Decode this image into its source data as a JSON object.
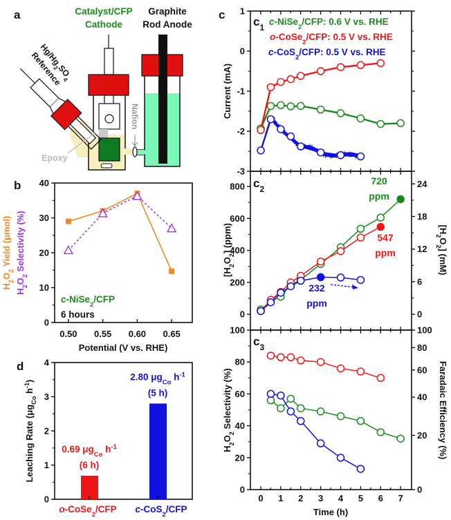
{
  "colors": {
    "green": "#1a8a1a",
    "red": "#f01515",
    "blue": "#1010e0",
    "orange": "#f5891f",
    "purple": "#a030f0",
    "black": "#111111"
  },
  "diagram": {
    "panel_label": "a",
    "cathode_label_1": "Catalyst/CFP",
    "cathode_label_2": "Cathode",
    "anode_label_1": "Graphite",
    "anode_label_2": "Rod Anode",
    "reference_label_1": "Hg/Hg_{2}SO_{4}",
    "reference_label_2": "Reference",
    "nafion_label": "Nafion",
    "epoxy_label": "Epoxy"
  },
  "chart_data": [
    {
      "id": "b",
      "panel_label": "b",
      "type": "line",
      "xlabel": "Potential (V vs. RHE)",
      "ylabel_1": "H_{2}O_{2} Yield (μmol)",
      "ylabel_2": "H_{2}O_{2} Selectivity (%)",
      "xlim": [
        0.48,
        0.68
      ],
      "ylim": [
        0,
        40
      ],
      "xticks": [
        "0.50",
        "0.55",
        "0.60",
        "0.65"
      ],
      "yticks": [
        0,
        10,
        20,
        30,
        40
      ],
      "x": [
        0.5,
        0.55,
        0.6,
        0.65
      ],
      "series": [
        {
          "name": "H2O2 Yield (μmol)",
          "color": "orange",
          "marker": "square",
          "dashed": false,
          "values": [
            29.0,
            32.0,
            37.0,
            14.7
          ]
        },
        {
          "name": "H2O2 Selectivity (%)",
          "color": "purple",
          "marker": "triangle-open",
          "dashed": true,
          "values": [
            20.7,
            31.3,
            36.3,
            27.0
          ]
        }
      ],
      "annotations": [
        {
          "text": "~{c}-NiSe_{2}/CFP",
          "color": "green"
        },
        {
          "text": "6 hours",
          "color": "black"
        }
      ]
    },
    {
      "id": "c1",
      "panel_label": "c",
      "sub_label": "c_{1}",
      "type": "line",
      "ylabel": "Current (mA)",
      "xlim": [
        -0.52,
        7.55
      ],
      "ylim": [
        -3,
        1
      ],
      "yticks": [
        -3,
        -2,
        -1,
        0,
        1
      ],
      "series": [
        {
          "name": "~{c}-NiSe_{2}/CFP: 0.6 V vs. RHE",
          "color": "green",
          "x": [
            0,
            0.5,
            1,
            1.5,
            2,
            3,
            4,
            5,
            6,
            7
          ],
          "y": [
            -1.93,
            -1.37,
            -1.35,
            -1.38,
            -1.37,
            -1.46,
            -1.55,
            -1.68,
            -1.82,
            -1.8
          ]
        },
        {
          "name": "~{o}-CoSe_{2}/CFP: 0.5 V vs. RHE",
          "color": "red",
          "x": [
            0,
            0.5,
            1,
            1.5,
            2,
            3,
            4,
            5,
            6
          ],
          "y": [
            -1.97,
            -0.9,
            -0.77,
            -0.7,
            -0.62,
            -0.5,
            -0.4,
            -0.35,
            -0.3
          ]
        },
        {
          "name": "~{c}-CoS_{2}/CFP: 0.5 V vs. RHE",
          "color": "blue",
          "x": [
            0,
            0.5,
            1,
            1.5,
            2,
            3,
            4,
            5
          ],
          "y": [
            -2.48,
            -1.7,
            -1.95,
            -2.13,
            -2.38,
            -2.53,
            -2.6,
            -2.63
          ]
        }
      ]
    },
    {
      "id": "c2",
      "sub_label": "c_{2}",
      "type": "line",
      "ylabel": "[H_{2}O_{2}] (ppm)",
      "ylabel_right": "[H_{2}O_{2}] (mM)",
      "xlim": [
        -0.52,
        7.55
      ],
      "ylim": [
        -99,
        895
      ],
      "yticks": [
        0,
        200,
        400,
        600,
        800
      ],
      "yticks_right": [
        0,
        6,
        12,
        18,
        24
      ],
      "series": [
        {
          "color": "green",
          "x": [
            0,
            0.5,
            1,
            1.5,
            2,
            3,
            4,
            5,
            6,
            7
          ],
          "y": [
            30,
            80,
            110,
            185,
            215,
            315,
            420,
            535,
            605,
            720
          ],
          "filled": [
            9
          ]
        },
        {
          "color": "red",
          "x": [
            0,
            0.5,
            1,
            1.5,
            2,
            3,
            4,
            5,
            6
          ],
          "y": [
            20,
            90,
            140,
            200,
            240,
            330,
            395,
            480,
            547
          ],
          "filled": [
            8
          ]
        },
        {
          "color": "blue",
          "x": [
            0,
            0.5,
            1,
            1.5,
            2,
            3,
            4,
            5
          ],
          "y": [
            20,
            75,
            135,
            175,
            210,
            232,
            230,
            215
          ],
          "filled": [
            5
          ]
        }
      ],
      "annotations": [
        {
          "text": "720",
          "color": "green"
        },
        {
          "text": "ppm",
          "color": "green"
        },
        {
          "text": "547",
          "color": "red"
        },
        {
          "text": "ppm",
          "color": "red"
        },
        {
          "text": "232",
          "color": "blue"
        },
        {
          "text": "ppm",
          "color": "blue"
        }
      ]
    },
    {
      "id": "c3",
      "sub_label": "c_{3}",
      "type": "line",
      "xlabel": "Time (h)",
      "ylabel": "H_{2}O_{2} Selectivity (%)",
      "ylabel_right": "Faradaic Efficiency (%)",
      "xlim": [
        -0.52,
        7.55
      ],
      "ylim": [
        0,
        100
      ],
      "xticks": [
        0,
        1,
        2,
        3,
        4,
        5,
        6,
        7
      ],
      "yticks": [
        0,
        20,
        40,
        60,
        80,
        100
      ],
      "yticks_right": [
        0,
        20,
        40,
        60,
        80,
        100
      ],
      "series": [
        {
          "color": "red",
          "x": [
            0.5,
            1,
            1.5,
            2,
            3,
            4,
            5,
            6
          ],
          "y": [
            84,
            83,
            83,
            81,
            80,
            76,
            74,
            70
          ]
        },
        {
          "color": "green",
          "x": [
            0.5,
            1,
            1.5,
            2,
            3,
            4,
            5,
            6,
            7
          ],
          "y": [
            56,
            51,
            57,
            51,
            49,
            46,
            43,
            36,
            32
          ]
        },
        {
          "color": "blue",
          "x": [
            0.5,
            1,
            1.5,
            2,
            3,
            4,
            5
          ],
          "y": [
            60,
            59,
            49,
            43,
            29,
            20,
            13
          ]
        }
      ]
    },
    {
      "id": "d",
      "panel_label": "d",
      "type": "bar",
      "ylabel": "Leaching Rate (μg_{Co} h^{-1})",
      "ylim": [
        0,
        4
      ],
      "yticks": [
        0,
        1,
        2,
        3,
        4
      ],
      "categories": [
        "~{o}-CoSe_{2}/CFP",
        "~{c}-CoS_{2}/CFP"
      ],
      "values": [
        0.69,
        2.8
      ],
      "colors": [
        "red",
        "blue"
      ],
      "labels": [
        {
          "line1": "0.69 μg_{Co} h^{-1}",
          "line2": "(6 h)"
        },
        {
          "line1": "2.80 μg_{Co} h^{-1}",
          "line2": "(5 h)"
        }
      ]
    }
  ]
}
